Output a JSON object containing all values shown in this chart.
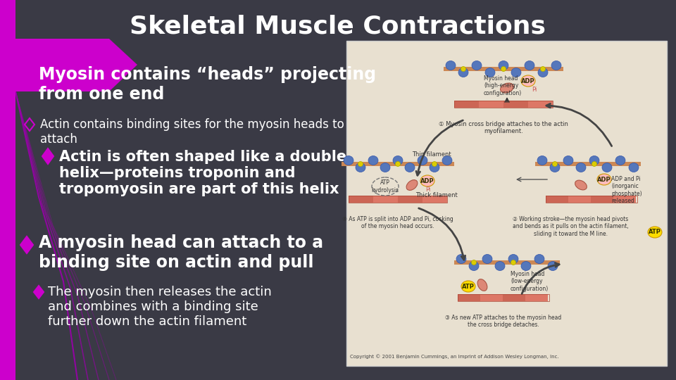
{
  "title": "Skeletal Muscle Contractions",
  "background_color": "#3a3a45",
  "title_color": "#ffffff",
  "title_fontsize": 26,
  "bullet1_text": "Myosin contains “heads” projecting\nfrom one end",
  "bullet1_fontsize": 17,
  "bullet2_text": "Actin contains binding sites for the myosin heads to\nattach",
  "bullet2_fontsize": 12,
  "bullet3_text": "Actin is often shaped like a double\nhelix—proteins troponin and\ntropomyosin are part of this helix",
  "bullet3_fontsize": 15,
  "bullet4_text": "A myosin head can attach to a\nbinding site on actin and pull",
  "bullet4_fontsize": 17,
  "bullet5_text": "The myosin then releases the actin\nand combines with a binding site\nfurther down the actin filament",
  "bullet5_fontsize": 13,
  "text_color": "#ffffff",
  "diamond_color": "#cc00cc",
  "left_bar_color": "#cc00cc",
  "arrow_color": "#cc00cc",
  "deco_line_color": "#9900aa",
  "image_bg": "#e8e0d0",
  "image_border": "#cccccc"
}
